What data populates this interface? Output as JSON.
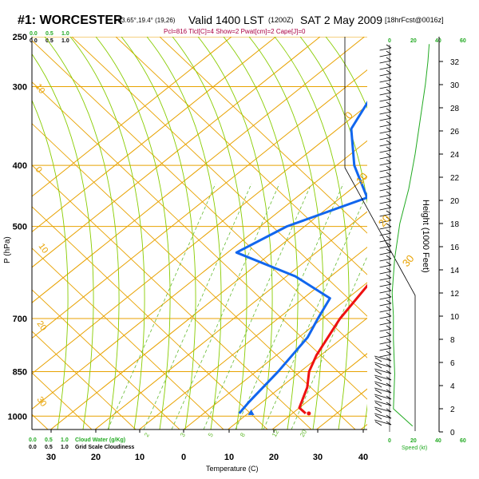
{
  "header": {
    "station": "#1: WORCESTER",
    "coords": "-33.65°,19.4° (19,26)",
    "valid": "Valid 1400 LST",
    "utc": "(1200Z)",
    "date": "SAT 2 May 2009",
    "forecast": "[18hrFcst@0016z]",
    "indices": "Pcl=816 Tlcl[C]=4 Show=2 Pwat[cm]=2 Cape[J]=0"
  },
  "colors": {
    "isotherm": "#e8a200",
    "dry_adiabat": "#e8a200",
    "moist_adiabat": "#88cc00",
    "mixing_ratio": "#66bb33",
    "temperature": "#ee1111",
    "dewpoint": "#1166ee",
    "green_text": "#22aa22",
    "index_text": "#aa0044"
  },
  "chart_data": {
    "type": "skew-t",
    "xlabel": "Temperature (C)",
    "ylabel": "P (hPa)",
    "y2label": "Height (1000 Feet)",
    "pressure_ticks": [
      "250",
      "300",
      "400",
      "500",
      "700",
      "850",
      "1000"
    ],
    "temperature_ticks": [
      "30",
      "20",
      "10",
      "0",
      "10",
      "20",
      "30",
      "40"
    ],
    "height_ticks": [
      "0",
      "2",
      "4",
      "6",
      "8",
      "10",
      "12",
      "14",
      "16",
      "18",
      "20",
      "22",
      "24",
      "26",
      "28",
      "30",
      "32"
    ],
    "left_scale_top": {
      "values": [
        "0.0",
        "0.5",
        "1.0"
      ],
      "values_small": [
        "0.0",
        "0.5",
        "1.0"
      ]
    },
    "left_scale_bottom": {
      "values": [
        "0.0",
        "0.5",
        "1.0"
      ],
      "label_green": "Cloud Water (g/Kg)",
      "values_black": [
        "0.0",
        "0.5",
        "1.0"
      ],
      "label_black": "Grid Scale Cloudiness"
    },
    "wind_scale_top": [
      "0",
      "20",
      "40",
      "60"
    ],
    "wind_scale_bottom": [
      "0",
      "20",
      "40",
      "60"
    ],
    "wind_label": "Speed (kt)",
    "isotherm_labels": [
      "10",
      "0",
      "10",
      "20",
      "30"
    ],
    "mixing_ratio_labels": [
      "2",
      "3",
      "5",
      "8",
      "12",
      "20"
    ],
    "temperature_profile": [
      {
        "p": 250,
        "t": -38
      },
      {
        "p": 300,
        "t": -33
      },
      {
        "p": 350,
        "t": -26
      },
      {
        "p": 400,
        "t": -18
      },
      {
        "p": 450,
        "t": -12
      },
      {
        "p": 500,
        "t": -7
      },
      {
        "p": 600,
        "t": 0
      },
      {
        "p": 700,
        "t": 4
      },
      {
        "p": 800,
        "t": 9
      },
      {
        "p": 850,
        "t": 12
      },
      {
        "p": 900,
        "t": 16
      },
      {
        "p": 970,
        "t": 20
      },
      {
        "p": 990,
        "t": 23
      }
    ],
    "dewpoint_profile": [
      {
        "p": 250,
        "td": -56
      },
      {
        "p": 300,
        "td": -53
      },
      {
        "p": 350,
        "td": -47
      },
      {
        "p": 400,
        "td": -36
      },
      {
        "p": 450,
        "td": -24
      },
      {
        "p": 500,
        "td": -34
      },
      {
        "p": 550,
        "td": -38
      },
      {
        "p": 600,
        "td": -18
      },
      {
        "p": 650,
        "td": -4
      },
      {
        "p": 700,
        "td": -1
      },
      {
        "p": 750,
        "td": 2
      },
      {
        "p": 850,
        "td": 5
      },
      {
        "p": 950,
        "td": 7
      },
      {
        "p": 990,
        "td": 8
      }
    ],
    "wind_speed_profile": [
      {
        "h": 0.5,
        "kt": 18
      },
      {
        "h": 2,
        "kt": 3
      },
      {
        "h": 5,
        "kt": 4
      },
      {
        "h": 8,
        "kt": 3
      },
      {
        "h": 10,
        "kt": 3
      },
      {
        "h": 12,
        "kt": 2
      },
      {
        "h": 15,
        "kt": 4
      },
      {
        "h": 18,
        "kt": 8
      },
      {
        "h": 21,
        "kt": 15
      },
      {
        "h": 24,
        "kt": 20
      },
      {
        "h": 27,
        "kt": 24
      },
      {
        "h": 30,
        "kt": 28
      },
      {
        "h": 32,
        "kt": 30
      },
      {
        "h": 33.5,
        "kt": 31
      }
    ]
  }
}
